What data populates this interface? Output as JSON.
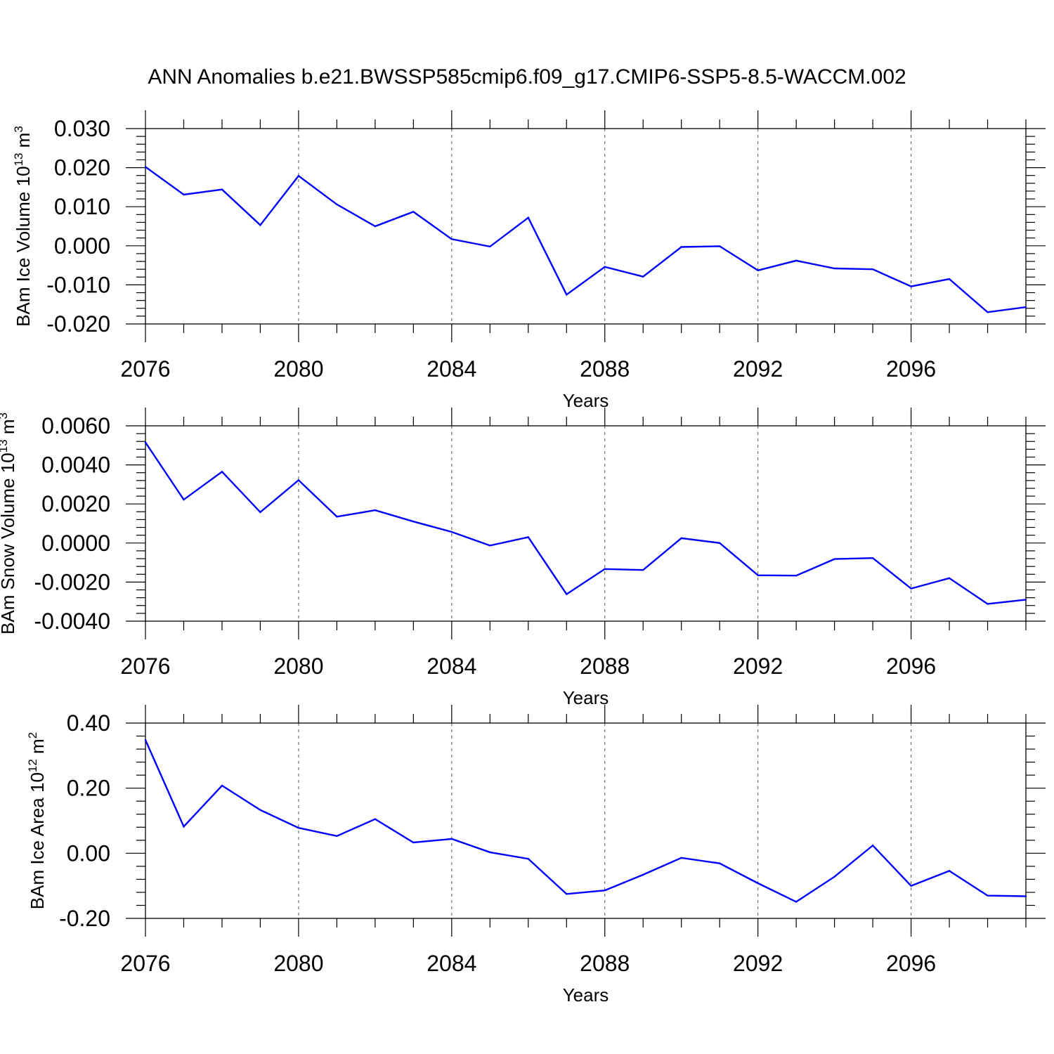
{
  "title": "ANN Anomalies b.e21.BWSSP585cmip6.f09_g17.CMIP6-SSP5-8.5-WACCM.002",
  "colors": {
    "series": "#0000ff",
    "axis": "#000000",
    "grid": "#555555"
  },
  "chart_data": [
    {
      "type": "line",
      "ylabel": {
        "base": "BAm Ice Volume 10",
        "exp": "13",
        "unit": " m",
        "unit_exp": "3"
      },
      "xlabel": "Years",
      "xlim": [
        2076,
        2099
      ],
      "ylim": [
        -0.02,
        0.03
      ],
      "xticks": [
        2076,
        2080,
        2084,
        2088,
        2092,
        2096
      ],
      "xtick_labels": [
        "2076",
        "2080",
        "2084",
        "2088",
        "2092",
        "2096"
      ],
      "yticks": [
        -0.02,
        -0.01,
        0.0,
        0.01,
        0.02,
        0.03
      ],
      "ytick_labels": [
        "-0.020",
        "-0.010",
        "0.000",
        "0.010",
        "0.020",
        "0.030"
      ],
      "grid": "x-dashed",
      "series": [
        {
          "x": [
            2076,
            2077,
            2078,
            2079,
            2080,
            2081,
            2082,
            2083,
            2084,
            2085,
            2086,
            2087,
            2088,
            2089,
            2090,
            2091,
            2092,
            2093,
            2094,
            2095,
            2096,
            2097,
            2098,
            2099
          ],
          "values": [
            0.0202,
            0.0131,
            0.0144,
            0.0053,
            0.0179,
            0.0106,
            0.005,
            0.0087,
            0.0017,
            -0.0002,
            0.0072,
            -0.0125,
            -0.0054,
            -0.0079,
            -0.0003,
            -0.0001,
            -0.0063,
            -0.0038,
            -0.0058,
            -0.006,
            -0.0104,
            -0.0085,
            -0.017,
            -0.0157
          ]
        }
      ]
    },
    {
      "type": "line",
      "ylabel": {
        "base": "BAm Snow Volume 10",
        "exp": "13",
        "unit": " m",
        "unit_exp": "3"
      },
      "xlabel": "Years",
      "xlim": [
        2076,
        2099
      ],
      "ylim": [
        -0.004,
        0.006
      ],
      "xticks": [
        2076,
        2080,
        2084,
        2088,
        2092,
        2096
      ],
      "xtick_labels": [
        "2076",
        "2080",
        "2084",
        "2088",
        "2092",
        "2096"
      ],
      "yticks": [
        -0.004,
        -0.002,
        0.0,
        0.002,
        0.004,
        0.006
      ],
      "ytick_labels": [
        "-0.0040",
        "-0.0020",
        "0.0000",
        "0.0020",
        "0.0040",
        "0.0060"
      ],
      "grid": "x-dashed",
      "series": [
        {
          "x": [
            2076,
            2077,
            2078,
            2079,
            2080,
            2081,
            2082,
            2083,
            2084,
            2085,
            2086,
            2087,
            2088,
            2089,
            2090,
            2091,
            2092,
            2093,
            2094,
            2095,
            2096,
            2097,
            2098,
            2099
          ],
          "values": [
            0.00515,
            0.00222,
            0.00365,
            0.00158,
            0.00322,
            0.00135,
            0.00168,
            0.0011,
            0.00057,
            -0.00013,
            0.0003,
            -0.00262,
            -0.00133,
            -0.00138,
            0.00025,
            0.0,
            -0.00165,
            -0.00167,
            -0.00082,
            -0.00077,
            -0.00233,
            -0.0018,
            -0.00312,
            -0.0029
          ]
        }
      ]
    },
    {
      "type": "line",
      "ylabel": {
        "base": "BAm Ice Area 10",
        "exp": "12",
        "unit": " m",
        "unit_exp": "2"
      },
      "xlabel": "Years",
      "xlim": [
        2076,
        2099
      ],
      "ylim": [
        -0.2,
        0.4
      ],
      "xticks": [
        2076,
        2080,
        2084,
        2088,
        2092,
        2096
      ],
      "xtick_labels": [
        "2076",
        "2080",
        "2084",
        "2088",
        "2092",
        "2096"
      ],
      "yticks": [
        -0.2,
        0.0,
        0.2,
        0.4
      ],
      "ytick_labels": [
        "-0.20",
        "0.00",
        "0.20",
        "0.40"
      ],
      "grid": "x-dashed",
      "series": [
        {
          "x": [
            2076,
            2077,
            2078,
            2079,
            2080,
            2081,
            2082,
            2083,
            2084,
            2085,
            2086,
            2087,
            2088,
            2089,
            2090,
            2091,
            2092,
            2093,
            2094,
            2095,
            2096,
            2097,
            2098,
            2099
          ],
          "values": [
            0.348,
            0.082,
            0.208,
            0.133,
            0.078,
            0.053,
            0.105,
            0.033,
            0.044,
            0.003,
            -0.017,
            -0.125,
            -0.114,
            -0.066,
            -0.014,
            -0.031,
            -0.092,
            -0.149,
            -0.072,
            0.024,
            -0.1,
            -0.054,
            -0.13,
            -0.132
          ]
        }
      ]
    }
  ]
}
